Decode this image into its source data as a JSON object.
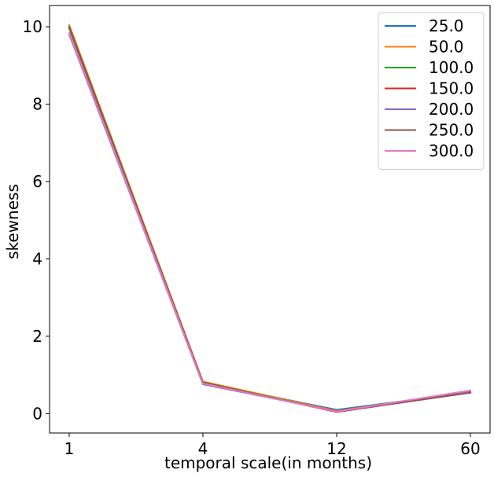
{
  "chart_data": {
    "type": "line",
    "xlabel": "temporal scale(in months)",
    "ylabel": "skewness",
    "categories": [
      "1",
      "4",
      "12",
      "60"
    ],
    "ylim": [
      -0.5,
      10.55
    ],
    "yticks": [
      0,
      2,
      4,
      6,
      8,
      10
    ],
    "grid": false,
    "legend_position": "top-right",
    "series": [
      {
        "name": "25.0",
        "color": "#1f77b4",
        "values": [
          10.0,
          0.8,
          0.1,
          0.55
        ]
      },
      {
        "name": "50.0",
        "color": "#ff7f0e",
        "values": [
          10.05,
          0.83,
          0.07,
          0.56
        ]
      },
      {
        "name": "100.0",
        "color": "#2ca02c",
        "values": [
          10.0,
          0.81,
          0.05,
          0.55
        ]
      },
      {
        "name": "150.0",
        "color": "#d62728",
        "values": [
          9.97,
          0.8,
          0.04,
          0.55
        ]
      },
      {
        "name": "200.0",
        "color": "#9467bd",
        "values": [
          9.8,
          0.76,
          0.06,
          0.57
        ]
      },
      {
        "name": "250.0",
        "color": "#8c564b",
        "values": [
          9.96,
          0.79,
          0.05,
          0.54
        ]
      },
      {
        "name": "300.0",
        "color": "#e377c2",
        "values": [
          9.84,
          0.78,
          0.05,
          0.6
        ]
      }
    ]
  }
}
